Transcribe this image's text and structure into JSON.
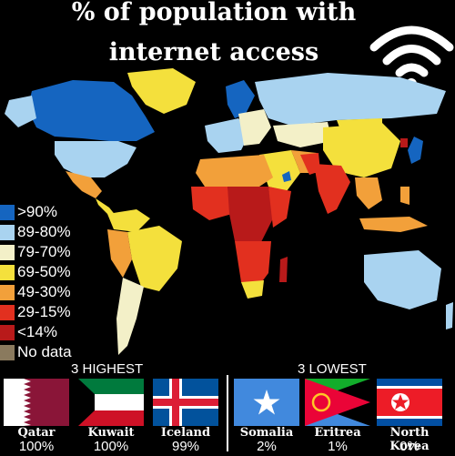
{
  "title": {
    "line1": "% of population with",
    "line2": "internet access"
  },
  "icons": {
    "header": "wifi-icon",
    "somalia_star": "star-icon",
    "eritrea_emblem": "olive-wreath-icon"
  },
  "legend": [
    {
      "label": ">90%",
      "color": "#1565c0"
    },
    {
      "label": "89-80%",
      "color": "#a9d3f0"
    },
    {
      "label": "79-70%",
      "color": "#f3f0c8"
    },
    {
      "label": "69-50%",
      "color": "#f4e03c"
    },
    {
      "label": "49-30%",
      "color": "#f2a03a"
    },
    {
      "label": "29-15%",
      "color": "#e2301f"
    },
    {
      "label": "<14%",
      "color": "#b81a1a"
    },
    {
      "label": "No data",
      "color": "#8a7a5e"
    }
  ],
  "highest": {
    "heading": "3 HIGHEST",
    "countries": [
      {
        "name": "Qatar",
        "value": "100%"
      },
      {
        "name": "Kuwait",
        "value": "100%"
      },
      {
        "name": "Iceland",
        "value": "99%"
      }
    ]
  },
  "lowest": {
    "heading": "3 LOWEST",
    "countries": [
      {
        "name": "Somalia",
        "value": "2%"
      },
      {
        "name": "Eritrea",
        "value": "1%"
      },
      {
        "name": "North Korea",
        "value": "0%"
      }
    ]
  }
}
